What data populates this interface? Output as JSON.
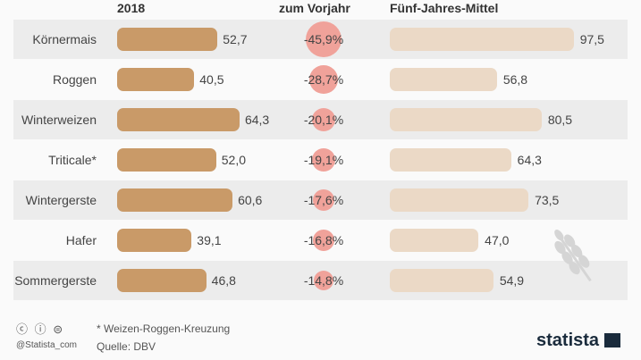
{
  "chart_data": {
    "type": "bar",
    "columns": {
      "col1": "2018",
      "col2": "zum Vorjahr",
      "col3": "Fünf-Jahres-Mittel"
    },
    "categories": [
      "Körnermais",
      "Roggen",
      "Winterweizen",
      "Triticale*",
      "Wintergerste",
      "Hafer",
      "Sommergerste"
    ],
    "series": [
      {
        "name": "2018",
        "values": [
          52.7,
          40.5,
          64.3,
          52.0,
          60.6,
          39.1,
          46.8
        ],
        "labels": [
          "52,7",
          "40,5",
          "64,3",
          "52,0",
          "60,6",
          "39,1",
          "46,8"
        ],
        "color": "#c99a68"
      },
      {
        "name": "zum Vorjahr",
        "values": [
          -45.9,
          -28.7,
          -20.1,
          -19.1,
          -17.6,
          -16.8,
          -14.8
        ],
        "labels": [
          "-45,9%",
          "-28,7%",
          "-20,1%",
          "-19,1%",
          "-17,6%",
          "-16,8%",
          "-14,8%"
        ],
        "color": "#f0a29a"
      },
      {
        "name": "Fünf-Jahres-Mittel",
        "values": [
          97.5,
          56.8,
          80.5,
          64.3,
          73.5,
          47.0,
          54.9
        ],
        "labels": [
          "97,5",
          "56,8",
          "80,5",
          "64,3",
          "73,5",
          "47,0",
          "54,9"
        ],
        "color": "#ebd9c6"
      }
    ]
  },
  "footer": {
    "note": "* Weizen-Roggen-Kreuzung",
    "source": "Quelle: DBV",
    "handle": "@Statista_com",
    "logo": "statista"
  }
}
